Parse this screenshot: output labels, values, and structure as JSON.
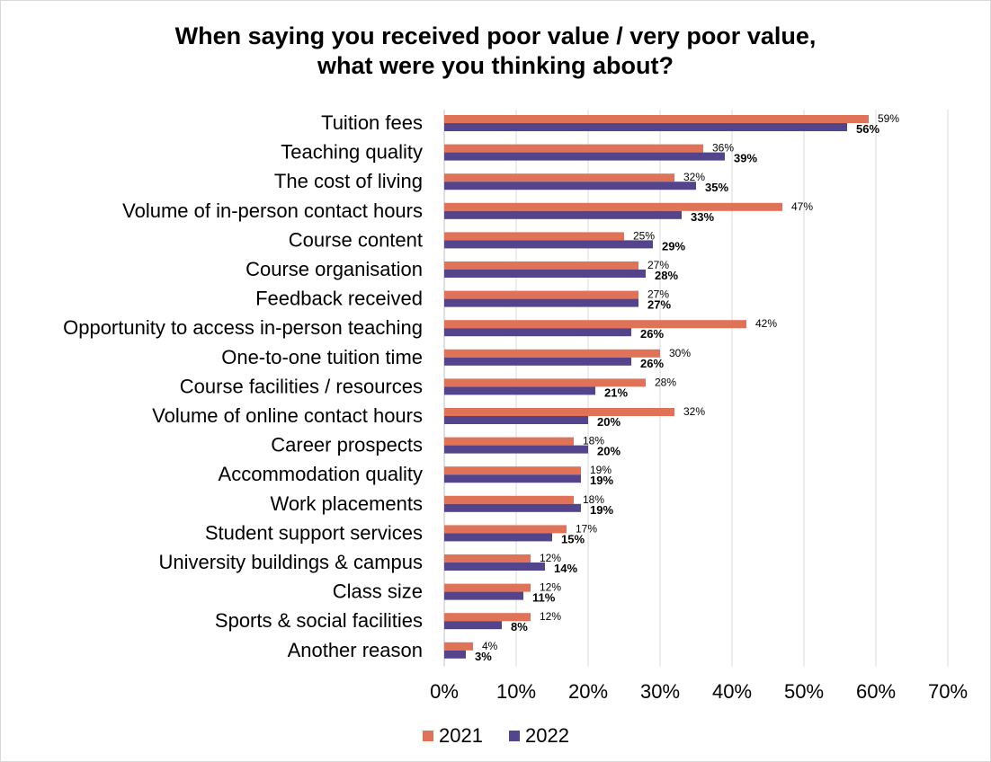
{
  "chart_data": {
    "type": "bar",
    "orientation": "horizontal",
    "title": "When saying you received poor value / very poor value,\nwhat were you thinking about?",
    "title_lines": [
      "When saying you received poor value / very poor value,",
      "what were you thinking about?"
    ],
    "categories": [
      "Tuition fees",
      "Teaching quality",
      "The cost of living",
      "Volume of in-person contact hours",
      "Course content",
      "Course organisation",
      "Feedback received",
      "Opportunity to access in-person teaching",
      "One-to-one tuition time",
      "Course facilities / resources",
      "Volume of online contact hours",
      "Career prospects",
      "Accommodation quality ",
      "Work placements ",
      "Student support services",
      "University buildings & campus",
      "Class size",
      "Sports & social facilities",
      "Another reason"
    ],
    "series": [
      {
        "name": "2021",
        "color": "#e07257",
        "values": [
          59,
          36,
          32,
          47,
          25,
          27,
          27,
          42,
          30,
          28,
          32,
          18,
          19,
          18,
          17,
          12,
          12,
          12,
          4
        ],
        "labels": [
          "59%",
          "36%",
          "32%",
          "47%",
          "25%",
          "27%",
          "27%",
          "42%",
          "30%",
          "28%",
          "32%",
          "18%",
          "19%",
          "18%",
          "17%",
          "12%",
          "12%",
          "12%",
          "4%"
        ]
      },
      {
        "name": "2022",
        "color": "#54448c",
        "values": [
          56,
          39,
          35,
          33,
          29,
          28,
          27,
          26,
          26,
          21,
          20,
          20,
          19,
          19,
          15,
          14,
          11,
          8,
          3
        ],
        "labels": [
          "56%",
          "39%",
          "35%",
          "33%",
          "29%",
          "28%",
          "27%",
          "26%",
          "26%",
          "21%",
          "20%",
          "20%",
          "19%",
          "19%",
          "15%",
          "14%",
          "11%",
          "8%",
          "3%"
        ]
      }
    ],
    "xlim": [
      0,
      70
    ],
    "xticks": [
      0,
      10,
      20,
      30,
      40,
      50,
      60,
      70
    ],
    "xtick_labels": [
      "0%",
      "10%",
      "20%",
      "30%",
      "40%",
      "50%",
      "60%",
      "70%"
    ],
    "grid": "vertical",
    "legend": "bottom-center",
    "xlabel": "",
    "ylabel": ""
  }
}
